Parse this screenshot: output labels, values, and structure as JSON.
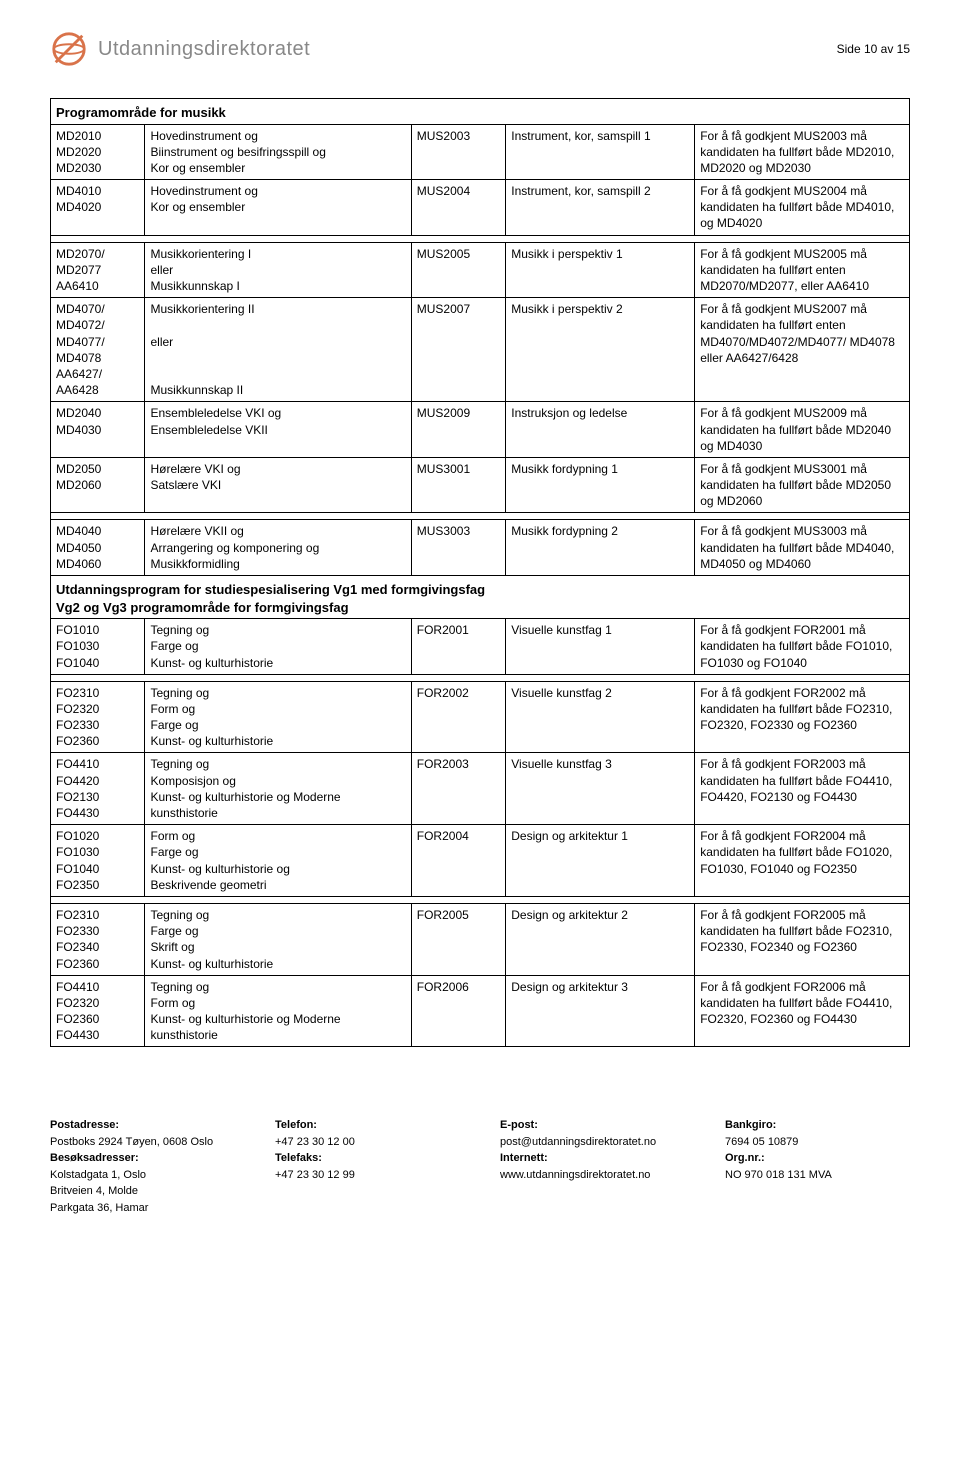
{
  "header": {
    "logo_text": "Utdanningsdirektoratet",
    "page_label": "Side 10 av 15"
  },
  "section1_title": "Programområde for musikk",
  "rows1": [
    {
      "a": "MD2010\nMD2020\nMD2030",
      "b": "Hovedinstrument og\nBiinstrument og besifringsspill og\nKor og ensembler",
      "c": "MUS2003",
      "d": "Instrument, kor, samspill 1",
      "e": "For å få godkjent MUS2003 må kandidaten ha fullført både MD2010, MD2020 og MD2030"
    },
    {
      "a": "MD4010\nMD4020",
      "b": "Hovedinstrument og\nKor og ensembler",
      "c": "MUS2004",
      "d": "Instrument, kor, samspill 2",
      "e": "For å få godkjent MUS2004 må kandidaten ha fullført både MD4010, og MD4020"
    }
  ],
  "rows2": [
    {
      "a": "MD2070/\nMD2077\nAA6410",
      "b": "Musikkorientering I\neller\nMusikkunnskap I",
      "c": "MUS2005",
      "d": "Musikk i perspektiv 1",
      "e": "For å få godkjent MUS2005 må kandidaten ha fullført enten MD2070/MD2077, eller AA6410"
    },
    {
      "a": "MD4070/\nMD4072/\nMD4077/\nMD4078\nAA6427/\nAA6428",
      "b": "Musikkorientering II\n\neller\n\n\nMusikkunnskap II",
      "c": "MUS2007",
      "d": "Musikk i perspektiv 2",
      "e": "For å få godkjent MUS2007 må kandidaten ha fullført enten MD4070/MD4072/MD4077/ MD4078 eller AA6427/6428"
    },
    {
      "a": "MD2040\nMD4030",
      "b": "Ensembleledelse VKI og\nEnsembleledelse VKII",
      "c": "MUS2009",
      "d": "Instruksjon og ledelse",
      "e": "For å få godkjent MUS2009 må kandidaten ha fullført både MD2040 og MD4030"
    },
    {
      "a": "MD2050\nMD2060",
      "b": "Hørelære VKI og\nSatslære VKI",
      "c": "MUS3001",
      "d": "Musikk fordypning 1",
      "e": "For å få godkjent MUS3001 må kandidaten ha fullført både MD2050 og MD2060"
    }
  ],
  "rows3": [
    {
      "a": "MD4040\nMD4050\nMD4060",
      "b": "Hørelære VKII og\nArrangering og komponering og\nMusikkformidling",
      "c": "MUS3003",
      "d": "Musikk fordypning 2",
      "e": "For å få godkjent MUS3003 må kandidaten ha fullført både MD4040, MD4050 og MD4060"
    }
  ],
  "section2_title": "Utdanningsprogram for studiespesialisering Vg1 med formgivingsfag\nVg2 og Vg3 programområde for formgivingsfag",
  "rows4": [
    {
      "a": "FO1010\nFO1030\nFO1040",
      "b": "Tegning og\nFarge og\nKunst- og kulturhistorie",
      "c": "FOR2001",
      "d": "Visuelle kunstfag 1",
      "e": "For å få godkjent FOR2001 må kandidaten ha fullført både FO1010, FO1030 og FO1040"
    }
  ],
  "rows5": [
    {
      "a": "FO2310\nFO2320\nFO2330\nFO2360",
      "b": "Tegning og\nForm og\nFarge og\nKunst- og kulturhistorie",
      "c": "FOR2002",
      "d": "Visuelle kunstfag 2",
      "e": "For å få godkjent FOR2002 må kandidaten ha fullført både FO2310, FO2320, FO2330 og FO2360"
    },
    {
      "a": "FO4410\nFO4420\nFO2130\nFO4430",
      "b": "Tegning og\nKomposisjon og\nKunst- og kulturhistorie og Moderne kunsthistorie",
      "c": "FOR2003",
      "d": "Visuelle kunstfag 3",
      "e": "For å få godkjent FOR2003 må kandidaten ha fullført både FO4410, FO4420, FO2130 og FO4430"
    },
    {
      "a": "FO1020\nFO1030\nFO1040\nFO2350",
      "b": "Form og\nFarge og\nKunst- og kulturhistorie og\nBeskrivende geometri",
      "c": "FOR2004",
      "d": "Design og arkitektur 1",
      "e": "For å få godkjent FOR2004 må kandidaten ha fullført både FO1020, FO1030, FO1040 og FO2350"
    }
  ],
  "rows6": [
    {
      "a": "FO2310\nFO2330\nFO2340\nFO2360",
      "b": "Tegning og\nFarge og\nSkrift og\nKunst- og kulturhistorie",
      "c": "FOR2005",
      "d": "Design og arkitektur 2",
      "e": "For å få godkjent FOR2005 må kandidaten ha fullført både FO2310, FO2330, FO2340 og FO2360"
    },
    {
      "a": "FO4410\nFO2320\nFO2360\nFO4430",
      "b": "Tegning og\nForm og\nKunst- og kulturhistorie og Moderne kunsthistorie",
      "c": "FOR2006",
      "d": "Design og arkitektur 3",
      "e": "For å få godkjent FOR2006 må kandidaten ha fullført både FO4410, FO2320, FO2360 og FO4430"
    }
  ],
  "footer": {
    "col1": {
      "l1": "Postadresse:",
      "l2": "Postboks 2924 Tøyen, 0608 Oslo",
      "l3": "Besøksadresser:",
      "l4": "Kolstadgata 1, Oslo",
      "l5": "Britveien 4, Molde",
      "l6": "Parkgata 36, Hamar"
    },
    "col2": {
      "l1": "Telefon:",
      "l2": "+47 23 30 12 00",
      "l3": "Telefaks:",
      "l4": "+47 23 30 12 99"
    },
    "col3": {
      "l1": "E-post:",
      "l2": "post@utdanningsdirektoratet.no",
      "l3": "Internett:",
      "l4": "www.utdanningsdirektoratet.no"
    },
    "col4": {
      "l1": "Bankgiro:",
      "l2": "7694 05 10879",
      "l3": "Org.nr.:",
      "l4": "NO 970 018 131 MVA"
    }
  },
  "logo_color": "#d9734a"
}
